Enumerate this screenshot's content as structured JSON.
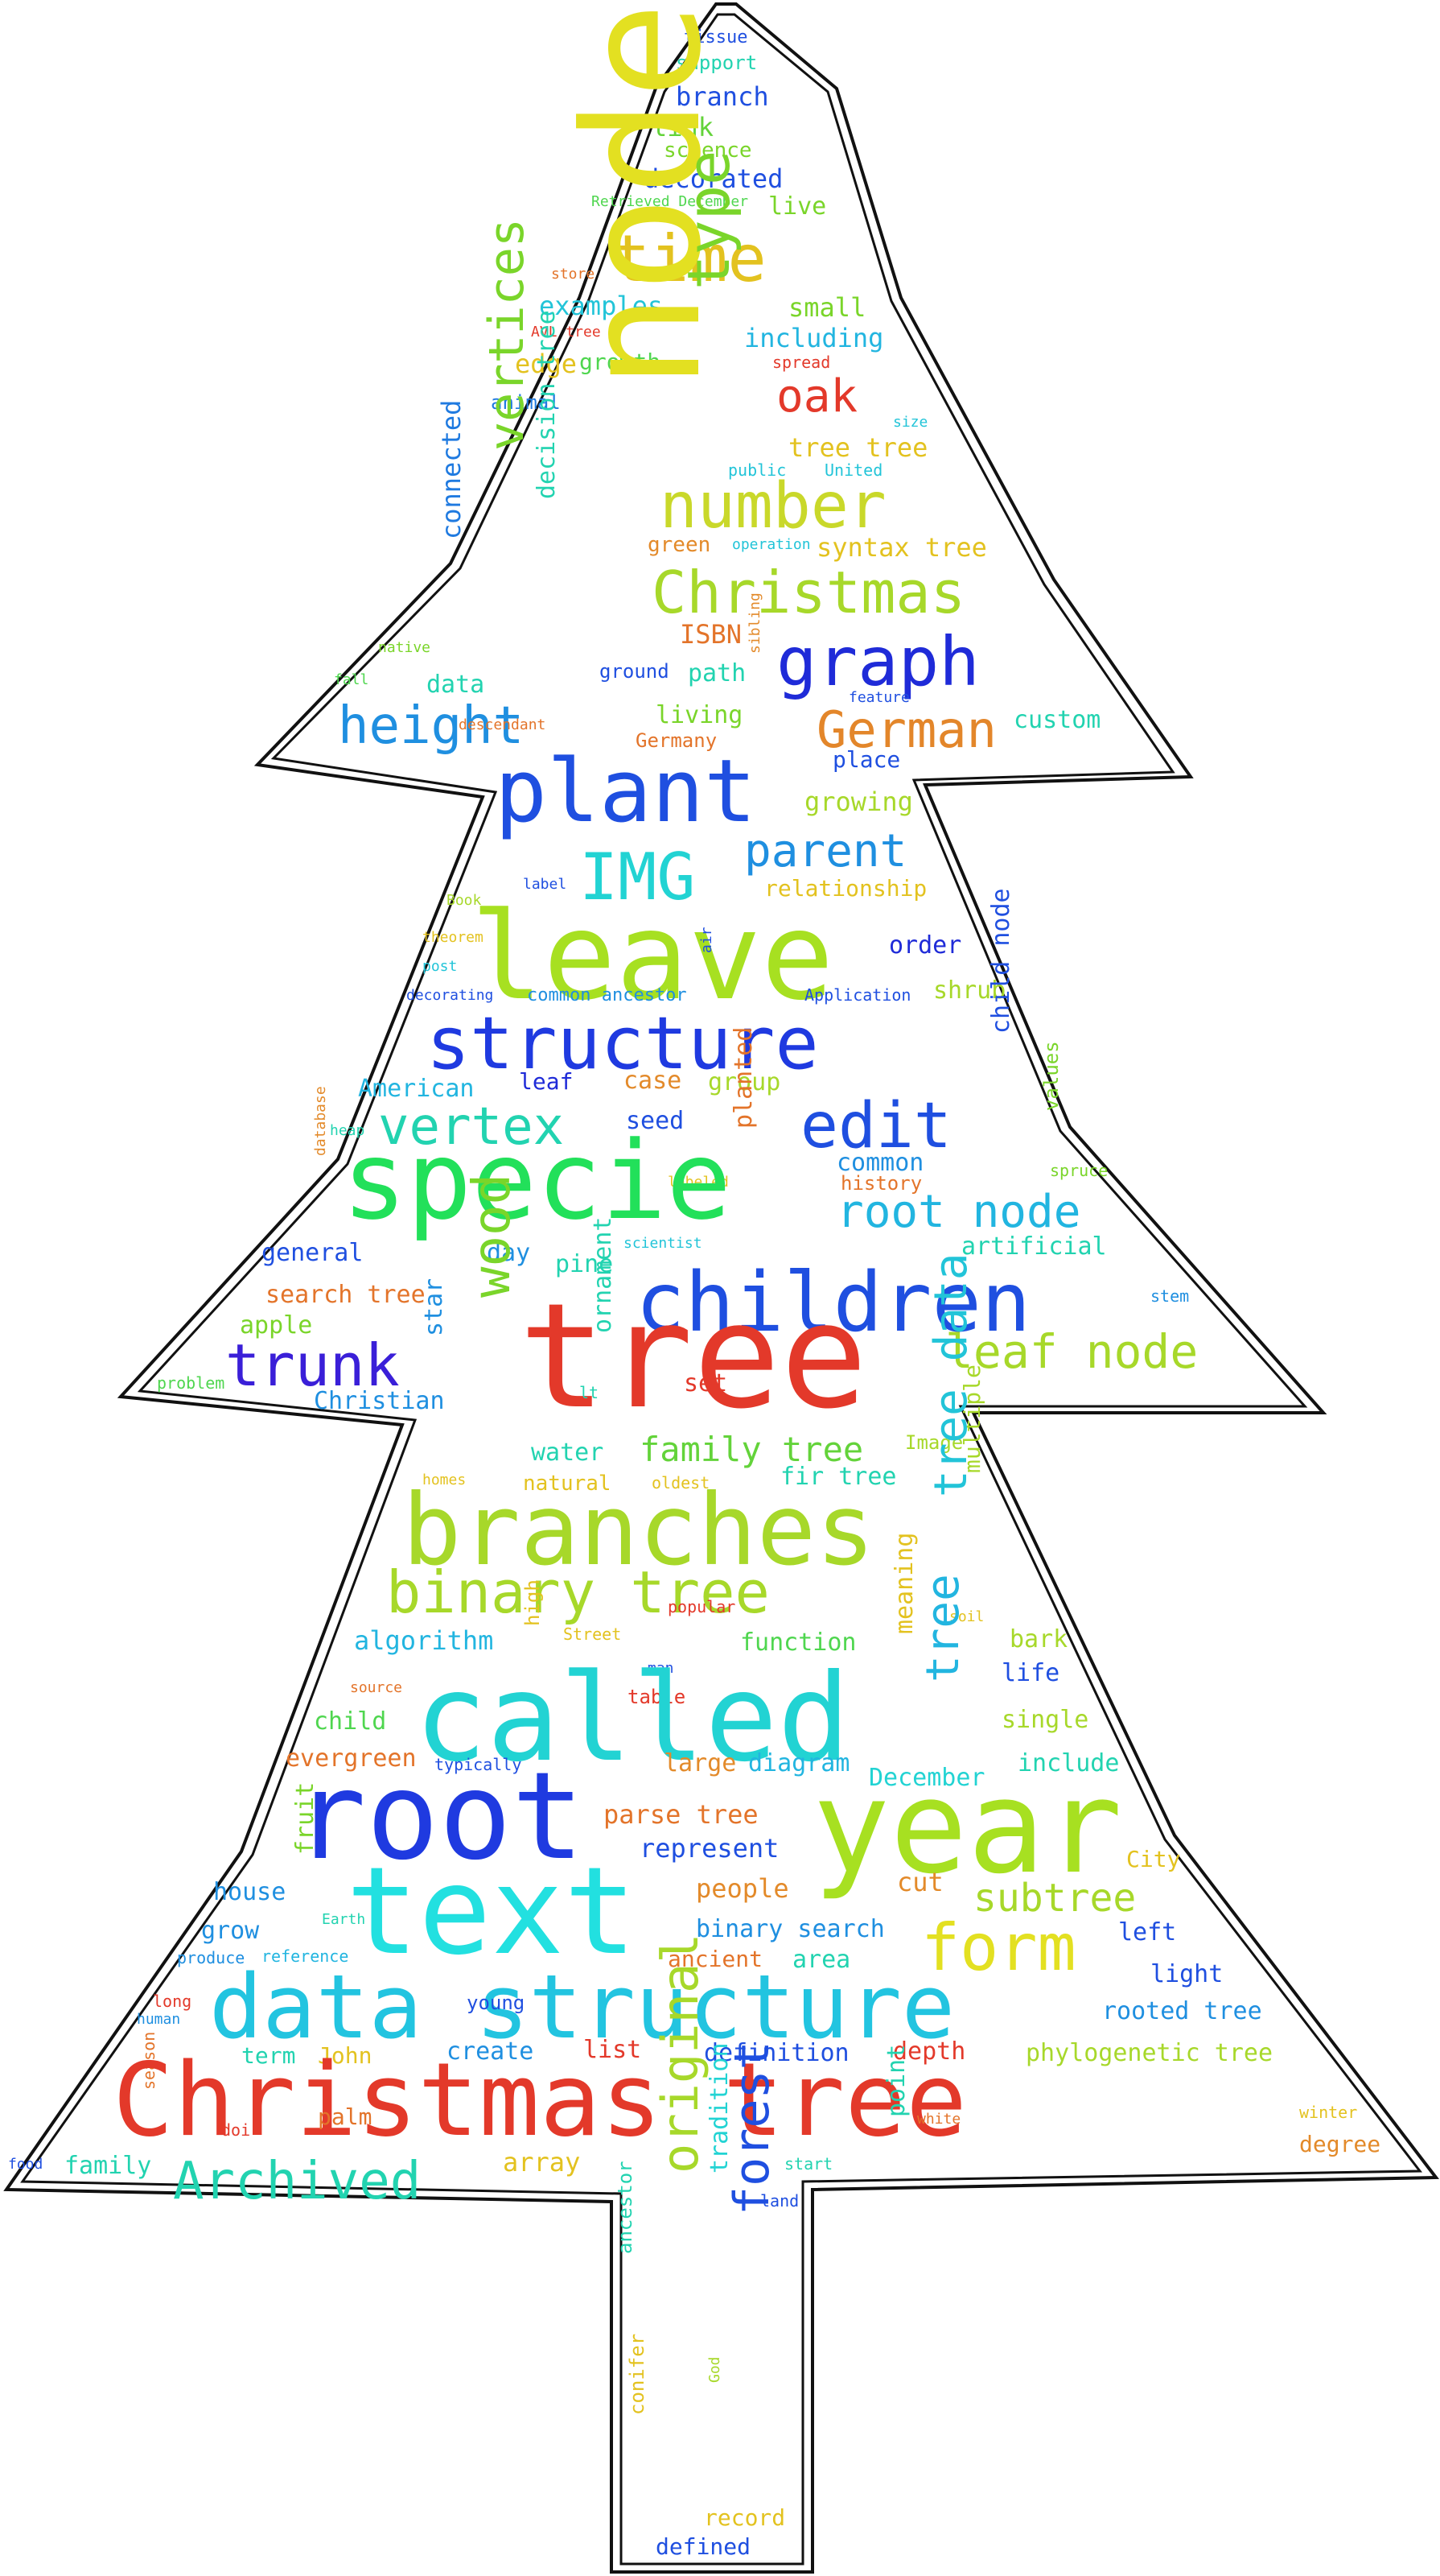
{
  "words": [
    {
      "text": "tissue",
      "color": "#1f4fe0"
    },
    {
      "text": "support",
      "color": "#22d3b0"
    },
    {
      "text": "branch",
      "color": "#1f4fe0"
    },
    {
      "text": "link",
      "color": "#63d33a"
    },
    {
      "text": "science",
      "color": "#7ad52a"
    },
    {
      "text": "decorated",
      "color": "#1f4fe0"
    },
    {
      "text": "Retrieved December",
      "color": "#4fd64f"
    },
    {
      "text": "live",
      "color": "#7ad52a"
    },
    {
      "text": "time",
      "color": "#e3c21f"
    },
    {
      "text": "store",
      "color": "#e3742a"
    },
    {
      "text": "examples",
      "color": "#22c4d8"
    },
    {
      "text": "small",
      "color": "#7ad52a"
    },
    {
      "text": "AVL tree",
      "color": "#e3392a"
    },
    {
      "text": "including",
      "color": "#22b5e0"
    },
    {
      "text": "edge",
      "color": "#e3c21f"
    },
    {
      "text": "growth",
      "color": "#4fd64f"
    },
    {
      "text": "spread",
      "color": "#e3392a"
    },
    {
      "text": "animal",
      "color": "#1f7ae0"
    },
    {
      "text": "oak",
      "color": "#e3392a"
    },
    {
      "text": "node",
      "color": "#e3e021"
    },
    {
      "text": "type",
      "color": "#7ad52a"
    },
    {
      "text": "size",
      "color": "#22c4d8"
    },
    {
      "text": "tree tree",
      "color": "#e3c21f"
    },
    {
      "text": "public",
      "color": "#22c4d8"
    },
    {
      "text": "United",
      "color": "#22c4d8"
    },
    {
      "text": "number",
      "color": "#c9d82a"
    },
    {
      "text": "vertices",
      "color": "#7ad52a"
    },
    {
      "text": "decision tree",
      "color": "#22d3b0"
    },
    {
      "text": "connected",
      "color": "#1f7ae0"
    },
    {
      "text": "green",
      "color": "#e38a2a"
    },
    {
      "text": "operation",
      "color": "#22c4d8"
    },
    {
      "text": "syntax tree",
      "color": "#e3c21f"
    },
    {
      "text": "Christmas",
      "color": "#a7d82a"
    },
    {
      "text": "native",
      "color": "#7ad52a"
    },
    {
      "text": "ISBN",
      "color": "#e3742a"
    },
    {
      "text": "graph",
      "color": "#1f2bd8"
    },
    {
      "text": "fall",
      "color": "#4fd64f"
    },
    {
      "text": "data",
      "color": "#22d3b0"
    },
    {
      "text": "ground",
      "color": "#1f4fe0"
    },
    {
      "text": "path",
      "color": "#22d3b0"
    },
    {
      "text": "sibling",
      "color": "#e38a2a"
    },
    {
      "text": "feature",
      "color": "#1f4fe0"
    },
    {
      "text": "height",
      "color": "#1f8fe0"
    },
    {
      "text": "descendant",
      "color": "#e3742a"
    },
    {
      "text": "living",
      "color": "#7ad52a"
    },
    {
      "text": "German",
      "color": "#e3862a"
    },
    {
      "text": "custom",
      "color": "#22d3b0"
    },
    {
      "text": "Germany",
      "color": "#e3742a"
    },
    {
      "text": "place",
      "color": "#1f4fe0"
    },
    {
      "text": "plant",
      "color": "#1f4fe0"
    },
    {
      "text": "growing",
      "color": "#a7d82a"
    },
    {
      "text": "IMG",
      "color": "#22d3d3"
    },
    {
      "text": "parent",
      "color": "#1f8fe0"
    },
    {
      "text": "Book",
      "color": "#a7d82a"
    },
    {
      "text": "label",
      "color": "#1f4fe0"
    },
    {
      "text": "relationship",
      "color": "#e3c21f"
    },
    {
      "text": "leave",
      "color": "#a7e021"
    },
    {
      "text": "theorem",
      "color": "#e3c21f"
    },
    {
      "text": "order",
      "color": "#1f2bd8"
    },
    {
      "text": "post",
      "color": "#22c4d8"
    },
    {
      "text": "air",
      "color": "#1f4fe0"
    },
    {
      "text": "decorating",
      "color": "#1f4fe0"
    },
    {
      "text": "common ancestor",
      "color": "#1f8fe0"
    },
    {
      "text": "Application",
      "color": "#1f4fe0"
    },
    {
      "text": "shrub",
      "color": "#a7d82a"
    },
    {
      "text": "structure",
      "color": "#1f3ae0"
    },
    {
      "text": "American",
      "color": "#22b5e0"
    },
    {
      "text": "leaf",
      "color": "#1f2bd8"
    },
    {
      "text": "case",
      "color": "#e38a2a"
    },
    {
      "text": "group",
      "color": "#a7d82a"
    },
    {
      "text": "child node",
      "color": "#1f4fe0"
    },
    {
      "text": "values",
      "color": "#7ad52a"
    },
    {
      "text": "heap",
      "color": "#22d3b0"
    },
    {
      "text": "vertex",
      "color": "#22d3b0"
    },
    {
      "text": "seed",
      "color": "#1f4fe0"
    },
    {
      "text": "edit",
      "color": "#1f4fe0"
    },
    {
      "text": "planted",
      "color": "#e3742a"
    },
    {
      "text": "spruce",
      "color": "#7ad52a"
    },
    {
      "text": "database",
      "color": "#e38a2a"
    },
    {
      "text": "labeled",
      "color": "#e3c21f"
    },
    {
      "text": "common",
      "color": "#1f8fe0"
    },
    {
      "text": "specie",
      "color": "#22e05a"
    },
    {
      "text": "history",
      "color": "#e3742a"
    },
    {
      "text": "root node",
      "color": "#22b5e0"
    },
    {
      "text": "scientist",
      "color": "#22c4d8"
    },
    {
      "text": "artificial",
      "color": "#22d3b0"
    },
    {
      "text": "general",
      "color": "#1f4fe0"
    },
    {
      "text": "day",
      "color": "#1f8fe0"
    },
    {
      "text": "pine",
      "color": "#22d3b0"
    },
    {
      "text": "children",
      "color": "#1f4fe0"
    },
    {
      "text": "search tree",
      "color": "#e3742a"
    },
    {
      "text": "stem",
      "color": "#1f8fe0"
    },
    {
      "text": "apple",
      "color": "#7ad52a"
    },
    {
      "text": "wood",
      "color": "#7ad52a"
    },
    {
      "text": "ornament",
      "color": "#22d3b0"
    },
    {
      "text": "tree",
      "color": "#e3392a"
    },
    {
      "text": "trunk",
      "color": "#3a1fd8"
    },
    {
      "text": "star",
      "color": "#1f8fe0"
    },
    {
      "text": "problem",
      "color": "#4fd64f"
    },
    {
      "text": "Christian",
      "color": "#1f8fe0"
    },
    {
      "text": "lt",
      "color": "#22d3b0"
    },
    {
      "text": "set",
      "color": "#e3392a"
    },
    {
      "text": "leaf node",
      "color": "#a7d82a"
    },
    {
      "text": "water",
      "color": "#22d3b0"
    },
    {
      "text": "family tree",
      "color": "#63d33a"
    },
    {
      "text": "Image",
      "color": "#a7d82a"
    },
    {
      "text": "homes",
      "color": "#e3c21f"
    },
    {
      "text": "natural",
      "color": "#e3c21f"
    },
    {
      "text": "oldest",
      "color": "#e3c21f"
    },
    {
      "text": "fir tree",
      "color": "#22d3b0"
    },
    {
      "text": "multiple",
      "color": "#a7d82a"
    },
    {
      "text": "branches",
      "color": "#a7d82a"
    },
    {
      "text": "tree data",
      "color": "#22c4d8"
    },
    {
      "text": "binary tree",
      "color": "#a7d82a"
    },
    {
      "text": "popular",
      "color": "#e3392a"
    },
    {
      "text": "Street",
      "color": "#e3c21f"
    },
    {
      "text": "high",
      "color": "#e3c21f"
    },
    {
      "text": "soil",
      "color": "#e3c21f"
    },
    {
      "text": "algorithm",
      "color": "#22b5e0"
    },
    {
      "text": "man",
      "color": "#1f4fe0"
    },
    {
      "text": "function",
      "color": "#4fd64f"
    },
    {
      "text": "bark",
      "color": "#a7d82a"
    },
    {
      "text": "meaning",
      "color": "#e3c21f"
    },
    {
      "text": "source",
      "color": "#e3742a"
    },
    {
      "text": "table",
      "color": "#e3392a"
    },
    {
      "text": "life",
      "color": "#1f4fe0"
    },
    {
      "text": "called",
      "color": "#22d3d3"
    },
    {
      "text": "tree",
      "color": "#22b5e0"
    },
    {
      "text": "child",
      "color": "#4fd64f"
    },
    {
      "text": "single",
      "color": "#a7d82a"
    },
    {
      "text": "evergreen",
      "color": "#e3742a"
    },
    {
      "text": "typically",
      "color": "#1f4fe0"
    },
    {
      "text": "large",
      "color": "#e38a2a"
    },
    {
      "text": "diagram",
      "color": "#22b5e0"
    },
    {
      "text": "December",
      "color": "#22d3d3"
    },
    {
      "text": "include",
      "color": "#22d3b0"
    },
    {
      "text": "root",
      "color": "#1f3ae0"
    },
    {
      "text": "year",
      "color": "#a7e021"
    },
    {
      "text": "Earth",
      "color": "#22d3b0"
    },
    {
      "text": "parse tree",
      "color": "#e3742a"
    },
    {
      "text": "represent",
      "color": "#1f4fe0"
    },
    {
      "text": "City",
      "color": "#e3c21f"
    },
    {
      "text": "text",
      "color": "#22e0e0"
    },
    {
      "text": "fruit",
      "color": "#7ad52a"
    },
    {
      "text": "house",
      "color": "#1f8fe0"
    },
    {
      "text": "people",
      "color": "#e38a2a"
    },
    {
      "text": "cut",
      "color": "#e38a2a"
    },
    {
      "text": "subtree",
      "color": "#a7d82a"
    },
    {
      "text": "grow",
      "color": "#1f8fe0"
    },
    {
      "text": "binary search",
      "color": "#1f8fe0"
    },
    {
      "text": "left",
      "color": "#1f4fe0"
    },
    {
      "text": "produce",
      "color": "#1f8fe0"
    },
    {
      "text": "reference",
      "color": "#22b5e0"
    },
    {
      "text": "ancient",
      "color": "#e3742a"
    },
    {
      "text": "area",
      "color": "#22d3b0"
    },
    {
      "text": "form",
      "color": "#e3e021"
    },
    {
      "text": "light",
      "color": "#1f4fe0"
    },
    {
      "text": "long",
      "color": "#e3392a"
    },
    {
      "text": "human",
      "color": "#1f8fe0"
    },
    {
      "text": "data structure",
      "color": "#22c4e0"
    },
    {
      "text": "young",
      "color": "#1f4fe0"
    },
    {
      "text": "rooted tree",
      "color": "#1f8fe0"
    },
    {
      "text": "term",
      "color": "#22d3b0"
    },
    {
      "text": "John",
      "color": "#e3c21f"
    },
    {
      "text": "create",
      "color": "#1f8fe0"
    },
    {
      "text": "list",
      "color": "#e3392a"
    },
    {
      "text": "definition",
      "color": "#1f4fe0"
    },
    {
      "text": "depth",
      "color": "#e3392a"
    },
    {
      "text": "phylogenetic tree",
      "color": "#a7d82a"
    },
    {
      "text": "season",
      "color": "#e3742a"
    },
    {
      "text": "Christmas tree",
      "color": "#e3392a"
    },
    {
      "text": "winter",
      "color": "#e3c21f"
    },
    {
      "text": "palm",
      "color": "#e3742a"
    },
    {
      "text": "doi",
      "color": "#e3392a"
    },
    {
      "text": "white",
      "color": "#e3742a"
    },
    {
      "text": "point",
      "color": "#22d3b0"
    },
    {
      "text": "degree",
      "color": "#e38a2a"
    },
    {
      "text": "food",
      "color": "#1f4fe0"
    },
    {
      "text": "family",
      "color": "#22d3b0"
    },
    {
      "text": "Archived",
      "color": "#22d3b0"
    },
    {
      "text": "array",
      "color": "#e3c21f"
    },
    {
      "text": "start",
      "color": "#22d3b0"
    },
    {
      "text": "land",
      "color": "#1f4fe0"
    },
    {
      "text": "original",
      "color": "#a7d82a"
    },
    {
      "text": "tradition",
      "color": "#22d3d3"
    },
    {
      "text": "forest",
      "color": "#1f4fe0"
    },
    {
      "text": "ancestor",
      "color": "#22d3b0"
    },
    {
      "text": "God",
      "color": "#a7d82a"
    },
    {
      "text": "conifer",
      "color": "#e3c21f"
    },
    {
      "text": "record",
      "color": "#e3c21f"
    },
    {
      "text": "defined",
      "color": "#1f4fe0"
    }
  ]
}
